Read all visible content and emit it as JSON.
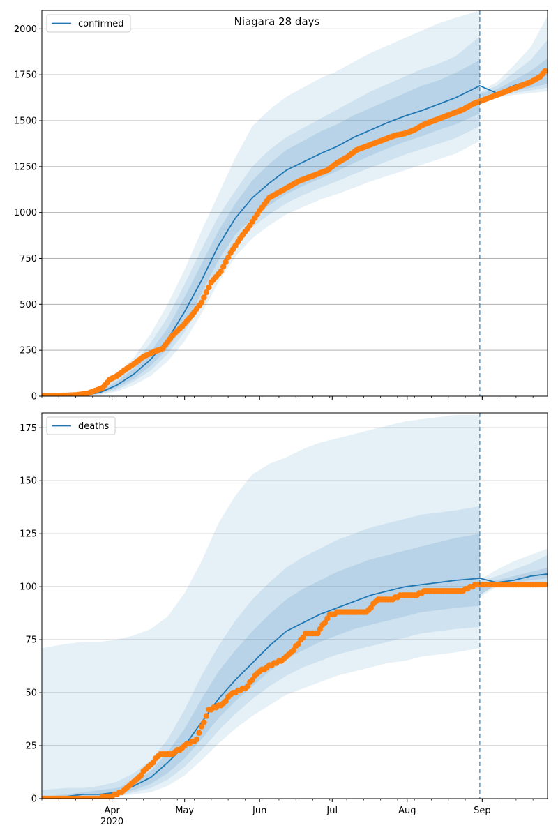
{
  "title": "Niagara 28 days",
  "colors": {
    "model_line": "#1f77b4",
    "band": "#1f77b4",
    "observed": "#ff7f0e",
    "grid": "#b0b0b0",
    "forecast_marker": "#1f77b4"
  },
  "x_axis": {
    "start": "2020-03-03",
    "end": "2020-09-28",
    "year_label": "2020",
    "month_ticks": [
      {
        "label": "Apr",
        "date": "2020-04-01"
      },
      {
        "label": "May",
        "date": "2020-05-01"
      },
      {
        "label": "Jun",
        "date": "2020-06-01"
      },
      {
        "label": "Jul",
        "date": "2020-07-01"
      },
      {
        "label": "Aug",
        "date": "2020-08-01"
      },
      {
        "label": "Sep",
        "date": "2020-09-01"
      }
    ]
  },
  "forecast_start": "2020-08-31",
  "chart_data": [
    {
      "type": "line",
      "legend": "confirmed",
      "legend_position": "top-left",
      "grid": "horizontal",
      "ylim": [
        0,
        2100
      ],
      "yticks": [
        0,
        250,
        500,
        750,
        1000,
        1250,
        1500,
        1750,
        2000
      ],
      "model": {
        "x": [
          "2020-03-03",
          "2020-03-20",
          "2020-03-27",
          "2020-04-03",
          "2020-04-10",
          "2020-04-17",
          "2020-04-24",
          "2020-05-01",
          "2020-05-08",
          "2020-05-15",
          "2020-05-22",
          "2020-05-29",
          "2020-06-05",
          "2020-06-12",
          "2020-06-19",
          "2020-06-26",
          "2020-07-03",
          "2020-07-10",
          "2020-07-17",
          "2020-07-24",
          "2020-07-31",
          "2020-08-07",
          "2020-08-14",
          "2020-08-21",
          "2020-08-31",
          "2020-09-07",
          "2020-09-14",
          "2020-09-21",
          "2020-09-28"
        ],
        "y": [
          0,
          5,
          20,
          60,
          120,
          200,
          310,
          460,
          630,
          820,
          970,
          1080,
          1160,
          1230,
          1275,
          1320,
          1360,
          1410,
          1450,
          1490,
          1525,
          1555,
          1590,
          1625,
          1690,
          1650,
          1690,
          1720,
          1765
        ],
        "band_50": {
          "lower": [
            0,
            3,
            14,
            45,
            95,
            165,
            260,
            390,
            560,
            740,
            880,
            970,
            1040,
            1100,
            1145,
            1185,
            1225,
            1270,
            1310,
            1350,
            1385,
            1415,
            1450,
            1480,
            1540,
            1635,
            1660,
            1680,
            1700
          ],
          "upper": [
            2,
            8,
            28,
            80,
            150,
            245,
            370,
            540,
            720,
            900,
            1050,
            1175,
            1265,
            1340,
            1390,
            1440,
            1480,
            1530,
            1570,
            1610,
            1650,
            1690,
            1720,
            1760,
            1830,
            1670,
            1720,
            1770,
            1840
          ]
        },
        "band_80": {
          "lower": [
            0,
            2,
            10,
            35,
            80,
            140,
            230,
            350,
            510,
            680,
            820,
            920,
            990,
            1050,
            1095,
            1135,
            1170,
            1210,
            1245,
            1280,
            1315,
            1345,
            1375,
            1405,
            1470,
            1630,
            1650,
            1665,
            1680
          ],
          "upper": [
            3,
            12,
            35,
            95,
            180,
            290,
            430,
            610,
            800,
            980,
            1120,
            1250,
            1340,
            1410,
            1460,
            1510,
            1560,
            1610,
            1660,
            1700,
            1740,
            1780,
            1810,
            1850,
            1960,
            1690,
            1760,
            1830,
            1940
          ]
        },
        "band_95": {
          "lower": [
            0,
            1,
            7,
            25,
            60,
            110,
            190,
            300,
            450,
            620,
            760,
            860,
            930,
            990,
            1030,
            1070,
            1100,
            1135,
            1170,
            1200,
            1230,
            1260,
            1290,
            1320,
            1390,
            1625,
            1640,
            1650,
            1660
          ],
          "upper": [
            5,
            16,
            45,
            115,
            210,
            340,
            500,
            690,
            900,
            1100,
            1300,
            1470,
            1560,
            1630,
            1680,
            1730,
            1770,
            1820,
            1870,
            1910,
            1950,
            1990,
            2030,
            2060,
            2100,
            1710,
            1800,
            1900,
            2070
          ]
        }
      },
      "observed": {
        "x": [
          "2020-03-03",
          "2020-03-10",
          "2020-03-17",
          "2020-03-22",
          "2020-03-25",
          "2020-03-28",
          "2020-03-31",
          "2020-04-03",
          "2020-04-06",
          "2020-04-10",
          "2020-04-14",
          "2020-04-18",
          "2020-04-22",
          "2020-04-26",
          "2020-04-30",
          "2020-05-04",
          "2020-05-08",
          "2020-05-12",
          "2020-05-16",
          "2020-05-20",
          "2020-05-24",
          "2020-05-28",
          "2020-06-01",
          "2020-06-05",
          "2020-06-09",
          "2020-06-13",
          "2020-06-17",
          "2020-06-21",
          "2020-06-25",
          "2020-06-29",
          "2020-07-03",
          "2020-07-07",
          "2020-07-11",
          "2020-07-15",
          "2020-07-19",
          "2020-07-23",
          "2020-07-27",
          "2020-07-31",
          "2020-08-04",
          "2020-08-08",
          "2020-08-12",
          "2020-08-16",
          "2020-08-20",
          "2020-08-24",
          "2020-08-28",
          "2020-09-01",
          "2020-09-05",
          "2020-09-09",
          "2020-09-13",
          "2020-09-17",
          "2020-09-21",
          "2020-09-25",
          "2020-09-27"
        ],
        "y": [
          2,
          3,
          6,
          15,
          30,
          45,
          90,
          110,
          140,
          175,
          215,
          240,
          260,
          330,
          380,
          440,
          510,
          620,
          680,
          780,
          860,
          930,
          1010,
          1080,
          1110,
          1140,
          1170,
          1190,
          1210,
          1230,
          1270,
          1300,
          1340,
          1360,
          1380,
          1400,
          1420,
          1430,
          1450,
          1480,
          1500,
          1520,
          1540,
          1560,
          1590,
          1610,
          1630,
          1650,
          1670,
          1690,
          1710,
          1740,
          1770
        ]
      }
    },
    {
      "type": "line",
      "legend": "deaths",
      "legend_position": "top-left",
      "grid": "horizontal",
      "ylim": [
        0,
        182
      ],
      "yticks": [
        0,
        25,
        50,
        75,
        100,
        125,
        150,
        175
      ],
      "model": {
        "x": [
          "2020-03-03",
          "2020-03-13",
          "2020-03-20",
          "2020-03-27",
          "2020-04-03",
          "2020-04-10",
          "2020-04-17",
          "2020-04-24",
          "2020-05-01",
          "2020-05-08",
          "2020-05-15",
          "2020-05-22",
          "2020-05-29",
          "2020-06-05",
          "2020-06-12",
          "2020-06-19",
          "2020-06-26",
          "2020-07-03",
          "2020-07-10",
          "2020-07-17",
          "2020-07-24",
          "2020-07-31",
          "2020-08-07",
          "2020-08-14",
          "2020-08-21",
          "2020-08-31",
          "2020-09-07",
          "2020-09-14",
          "2020-09-21",
          "2020-09-28"
        ],
        "y": [
          0,
          1,
          2,
          2,
          3,
          6,
          10,
          17,
          25,
          36,
          47,
          56,
          64,
          72,
          79,
          83,
          87,
          90,
          93,
          96,
          98,
          100,
          101,
          102,
          103,
          104,
          102,
          103,
          105,
          106
        ],
        "band_50": {
          "lower": [
            0,
            0,
            1,
            1,
            2,
            4,
            7,
            12,
            19,
            28,
            38,
            46,
            53,
            60,
            66,
            70,
            74,
            77,
            80,
            82,
            84,
            86,
            88,
            89,
            90,
            91,
            101,
            102,
            103,
            104
          ],
          "upper": [
            1,
            2,
            3,
            4,
            5,
            8,
            13,
            22,
            33,
            47,
            60,
            70,
            79,
            87,
            94,
            99,
            103,
            107,
            110,
            113,
            115,
            117,
            119,
            121,
            123,
            125,
            103,
            105,
            107,
            109
          ]
        },
        "band_80": {
          "lower": [
            0,
            0,
            0,
            1,
            1,
            3,
            5,
            9,
            15,
            23,
            32,
            40,
            47,
            53,
            58,
            62,
            65,
            68,
            70,
            72,
            74,
            76,
            78,
            79,
            80,
            81,
            101,
            101,
            102,
            102
          ],
          "upper": [
            4,
            5,
            5,
            6,
            8,
            12,
            18,
            28,
            42,
            58,
            72,
            84,
            94,
            102,
            109,
            114,
            118,
            122,
            125,
            128,
            130,
            132,
            134,
            135,
            136,
            138,
            105,
            108,
            111,
            115
          ]
        },
        "band_95": {
          "lower": [
            0,
            0,
            0,
            0,
            1,
            2,
            3,
            6,
            11,
            18,
            26,
            33,
            39,
            44,
            49,
            52,
            55,
            58,
            60,
            62,
            64,
            65,
            67,
            68,
            69,
            71,
            100,
            100,
            101,
            101
          ],
          "upper": [
            71,
            73,
            74,
            74,
            75,
            77,
            80,
            86,
            97,
            112,
            130,
            143,
            153,
            158,
            161,
            165,
            168,
            170,
            172,
            174,
            176,
            178,
            179,
            180,
            181,
            181,
            108,
            112,
            115,
            118
          ]
        }
      },
      "observed": {
        "x": [
          "2020-03-03",
          "2020-03-13",
          "2020-03-23",
          "2020-04-01",
          "2020-04-06",
          "2020-04-11",
          "2020-04-16",
          "2020-04-21",
          "2020-04-26",
          "2020-05-01",
          "2020-05-06",
          "2020-05-11",
          "2020-05-16",
          "2020-05-21",
          "2020-05-26",
          "2020-05-31",
          "2020-06-05",
          "2020-06-10",
          "2020-06-15",
          "2020-06-20",
          "2020-06-25",
          "2020-06-30",
          "2020-07-05",
          "2020-07-10",
          "2020-07-15",
          "2020-07-20",
          "2020-07-25",
          "2020-07-30",
          "2020-08-04",
          "2020-08-09",
          "2020-08-14",
          "2020-08-19",
          "2020-08-24",
          "2020-08-29",
          "2020-09-03",
          "2020-09-08",
          "2020-09-13",
          "2020-09-18",
          "2020-09-23",
          "2020-09-27"
        ],
        "y": [
          0,
          0,
          0,
          1,
          4,
          9,
          15,
          21,
          21,
          25,
          28,
          42,
          44,
          50,
          52,
          59,
          63,
          65,
          70,
          78,
          78,
          87,
          88,
          88,
          88,
          94,
          94,
          96,
          96,
          98,
          98,
          98,
          98,
          101,
          101,
          101,
          101,
          101,
          101,
          101
        ]
      }
    }
  ]
}
